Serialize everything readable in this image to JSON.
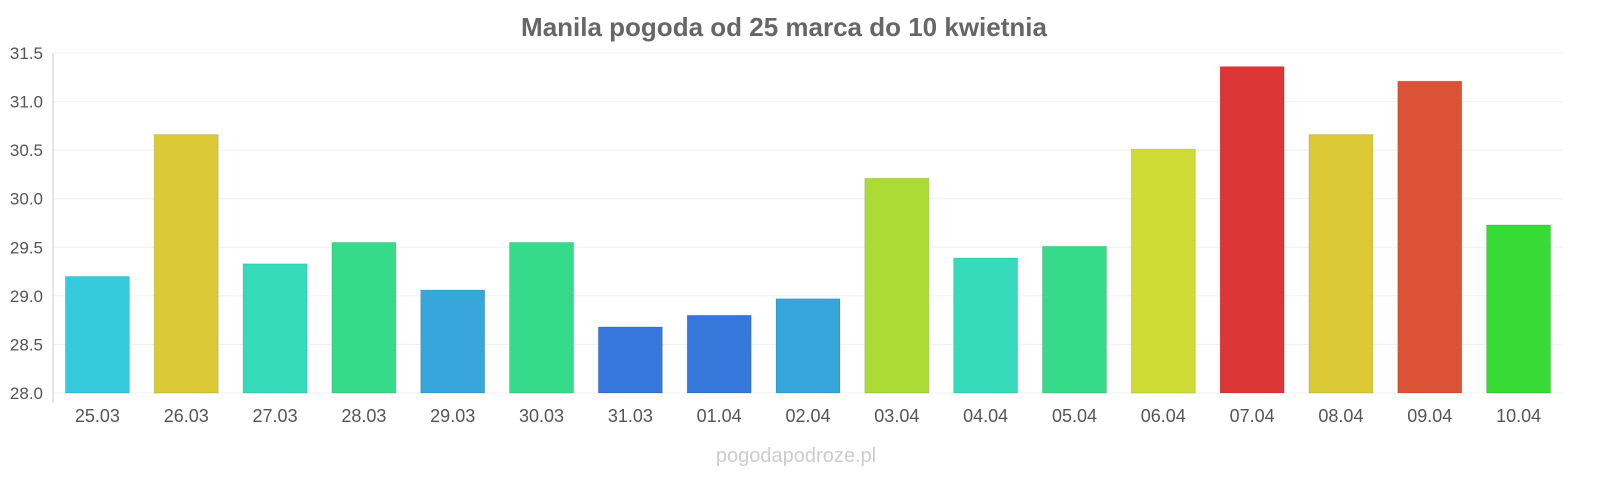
{
  "chart_data": {
    "type": "bar",
    "title": "Manila pogoda od 25 marca do 10 kwietnia",
    "xlabel": "",
    "ylabel": "",
    "ylim": [
      28.0,
      31.5
    ],
    "yticks": [
      "28.0",
      "28.5",
      "29.0",
      "29.5",
      "30.0",
      "30.5",
      "31.0",
      "31.5"
    ],
    "grid": true,
    "categories": [
      "25.03",
      "26.03",
      "27.03",
      "28.03",
      "29.03",
      "30.03",
      "31.03",
      "01.04",
      "02.04",
      "03.04",
      "04.04",
      "05.04",
      "06.04",
      "07.04",
      "08.04",
      "09.04",
      "10.04"
    ],
    "values": [
      29.2,
      30.66,
      29.33,
      29.55,
      29.06,
      29.55,
      28.68,
      28.8,
      28.97,
      30.21,
      29.39,
      29.51,
      30.51,
      31.36,
      30.66,
      31.21,
      29.73
    ],
    "colors": [
      "#36cbdc",
      "#dbc936",
      "#36dbbc",
      "#36db8a",
      "#36a6db",
      "#36db8a",
      "#3677db",
      "#3677db",
      "#36a6db",
      "#acdb36",
      "#36dbbc",
      "#36db8a",
      "#cfdc36",
      "#dc3636",
      "#dbc936",
      "#dc5236",
      "#36db36"
    ]
  },
  "watermark": "pogodapodroze.pl"
}
